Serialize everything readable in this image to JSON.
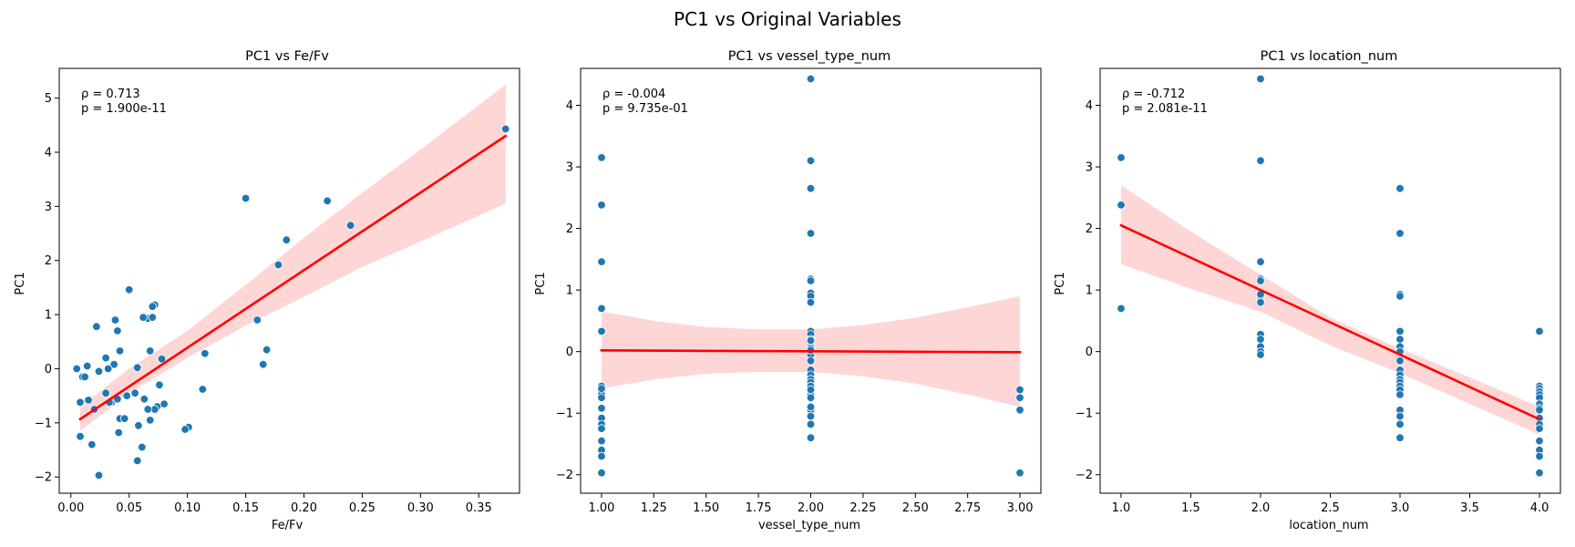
{
  "figure": {
    "suptitle": "PC1 vs Original Variables"
  },
  "style": {
    "point_color": "#1f77b4",
    "line_color": "#ff0000",
    "band_color": "#ffd6d6"
  },
  "chart_data": [
    {
      "type": "scatter",
      "title": "PC1 vs Fe/Fv",
      "xlabel": "Fe/Fv",
      "ylabel": "PC1",
      "xlim": [
        -0.01,
        0.385
      ],
      "ylim": [
        -2.3,
        5.55
      ],
      "xticks": [
        0.0,
        0.05,
        0.1,
        0.15,
        0.2,
        0.25,
        0.3,
        0.35
      ],
      "xtick_labels": [
        "0.00",
        "0.05",
        "0.10",
        "0.15",
        "0.20",
        "0.25",
        "0.30",
        "0.35"
      ],
      "yticks": [
        -2,
        -1,
        0,
        1,
        2,
        3,
        4,
        5
      ],
      "ytick_labels": [
        "−2",
        "−1",
        "0",
        "1",
        "2",
        "3",
        "4",
        "5"
      ],
      "annotation": [
        "ρ = 0.713",
        "p = 1.900e-11"
      ],
      "x": [
        0.373,
        0.15,
        0.22,
        0.24,
        0.185,
        0.178,
        0.16,
        0.165,
        0.168,
        0.115,
        0.113,
        0.101,
        0.098,
        0.078,
        0.08,
        0.076,
        0.072,
        0.074,
        0.07,
        0.072,
        0.066,
        0.07,
        0.062,
        0.068,
        0.066,
        0.05,
        0.038,
        0.04,
        0.022,
        0.03,
        0.042,
        0.057,
        0.037,
        0.032,
        0.024,
        0.014,
        0.01,
        0.005,
        0.012,
        0.008,
        0.035,
        0.03,
        0.048,
        0.055,
        0.04,
        0.063,
        0.058,
        0.042,
        0.046,
        0.015,
        0.008,
        0.018,
        0.033,
        0.068,
        0.061,
        0.041,
        0.057,
        0.02,
        0.024
      ],
      "y": [
        4.43,
        3.15,
        3.1,
        2.65,
        2.38,
        1.92,
        0.9,
        0.08,
        0.35,
        0.28,
        -0.38,
        -1.08,
        -1.12,
        0.18,
        -0.65,
        -0.3,
        1.18,
        -0.7,
        1.15,
        -0.75,
        0.93,
        0.95,
        0.95,
        0.33,
        -0.75,
        1.46,
        0.9,
        0.7,
        0.78,
        0.2,
        0.33,
        0.02,
        0.08,
        0.0,
        -0.05,
        0.05,
        -0.15,
        0.0,
        -0.15,
        -0.62,
        -0.62,
        -0.45,
        -0.5,
        -0.45,
        -0.56,
        -0.56,
        -1.05,
        -0.92,
        -0.92,
        -0.58,
        -1.25,
        -1.4,
        -0.62,
        -0.95,
        -1.45,
        -1.18,
        -1.7,
        -0.75,
        -1.97
      ],
      "fit": {
        "x": [
          0.008,
          0.373
        ],
        "y": [
          -0.93,
          4.3
        ]
      },
      "band": {
        "x": [
          0.008,
          0.05,
          0.1,
          0.15,
          0.2,
          0.25,
          0.3,
          0.373
        ],
        "upper": [
          -0.7,
          0.0,
          0.7,
          1.55,
          2.42,
          3.25,
          4.05,
          5.25
        ],
        "lower": [
          -1.15,
          -0.45,
          0.2,
          0.8,
          1.33,
          1.88,
          2.35,
          3.05
        ]
      }
    },
    {
      "type": "scatter",
      "title": "PC1 vs vessel_type_num",
      "xlabel": "vessel_type_num",
      "ylabel": "PC1",
      "xlim": [
        0.9,
        3.1
      ],
      "ylim": [
        -2.3,
        4.6
      ],
      "xticks": [
        1.0,
        1.25,
        1.5,
        1.75,
        2.0,
        2.25,
        2.5,
        2.75,
        3.0
      ],
      "xtick_labels": [
        "1.00",
        "1.25",
        "1.50",
        "1.75",
        "2.00",
        "2.25",
        "2.50",
        "2.75",
        "3.00"
      ],
      "yticks": [
        -2,
        -1,
        0,
        1,
        2,
        3,
        4
      ],
      "ytick_labels": [
        "−2",
        "−1",
        "0",
        "1",
        "2",
        "3",
        "4"
      ],
      "annotation": [
        "ρ = -0.004",
        "p = 9.735e-01"
      ],
      "x": [
        1,
        1,
        1,
        1,
        1,
        1,
        1,
        1,
        1,
        1,
        1,
        1,
        1,
        1,
        1,
        1,
        1,
        1,
        1,
        2,
        2,
        2,
        2,
        2,
        2,
        2,
        2,
        2,
        2,
        2,
        2,
        2,
        2,
        2,
        2,
        2,
        2,
        2,
        2,
        2,
        2,
        2,
        2,
        2,
        2,
        2,
        2,
        2,
        2,
        2,
        2,
        2,
        2,
        3,
        3,
        3,
        3
      ],
      "y": [
        3.15,
        2.38,
        1.46,
        0.7,
        0.33,
        -0.56,
        -0.62,
        -0.65,
        -0.7,
        -0.75,
        -0.92,
        -1.08,
        -1.18,
        -1.25,
        -1.45,
        -1.6,
        -1.7,
        -1.97,
        -0.6,
        4.43,
        3.1,
        2.65,
        1.92,
        1.18,
        1.15,
        0.95,
        0.9,
        0.8,
        0.33,
        0.28,
        0.2,
        0.08,
        0.05,
        0.0,
        -0.05,
        -0.15,
        -0.3,
        -0.38,
        -0.45,
        -0.5,
        -0.56,
        -0.62,
        -0.7,
        -0.75,
        -0.95,
        -1.05,
        -1.18,
        -1.4,
        0.18,
        0.02,
        -0.56,
        -0.9,
        -0.62,
        -0.62,
        -0.75,
        -0.95,
        -1.97
      ],
      "fit": {
        "x": [
          1.0,
          3.0
        ],
        "y": [
          0.02,
          -0.01
        ]
      },
      "band": {
        "x": [
          1.0,
          1.25,
          1.5,
          1.75,
          2.0,
          2.25,
          2.5,
          2.75,
          3.0
        ],
        "upper": [
          0.65,
          0.5,
          0.4,
          0.36,
          0.36,
          0.43,
          0.55,
          0.72,
          0.9
        ],
        "lower": [
          -0.6,
          -0.45,
          -0.36,
          -0.33,
          -0.33,
          -0.4,
          -0.52,
          -0.7,
          -0.9
        ]
      }
    },
    {
      "type": "scatter",
      "title": "PC1 vs location_num",
      "xlabel": "location_num",
      "ylabel": "PC1",
      "xlim": [
        0.85,
        4.15
      ],
      "ylim": [
        -2.3,
        4.6
      ],
      "xticks": [
        1.0,
        1.5,
        2.0,
        2.5,
        3.0,
        3.5,
        4.0
      ],
      "xtick_labels": [
        "1.0",
        "1.5",
        "2.0",
        "2.5",
        "3.0",
        "3.5",
        "4.0"
      ],
      "yticks": [
        -2,
        -1,
        0,
        1,
        2,
        3,
        4
      ],
      "ytick_labels": [
        "−2",
        "−1",
        "0",
        "1",
        "2",
        "3",
        "4"
      ],
      "annotation": [
        "ρ = -0.712",
        "p = 2.081e-11"
      ],
      "x": [
        1,
        1,
        1,
        2,
        2,
        2,
        2,
        2,
        2,
        2,
        2,
        2,
        2,
        2,
        2,
        2,
        2,
        3,
        3,
        3,
        3,
        3,
        3,
        3,
        3,
        3,
        3,
        3,
        3,
        3,
        3,
        3,
        3,
        3,
        3,
        3,
        3,
        4,
        4,
        4,
        4,
        4,
        4,
        4,
        4,
        4,
        4,
        4,
        4,
        4,
        4,
        4,
        4
      ],
      "y": [
        3.15,
        2.38,
        0.7,
        4.43,
        3.1,
        1.46,
        1.18,
        1.15,
        0.95,
        0.9,
        0.8,
        0.28,
        0.2,
        0.08,
        0.0,
        -0.05,
        0.93,
        2.65,
        1.92,
        0.93,
        0.9,
        0.33,
        0.2,
        0.08,
        0.0,
        -0.15,
        -0.3,
        -0.38,
        -0.45,
        -0.5,
        -0.56,
        -0.62,
        -0.7,
        -0.95,
        -1.05,
        -1.18,
        -1.4,
        0.33,
        -0.56,
        -0.6,
        -0.65,
        -0.7,
        -0.75,
        -0.85,
        -0.92,
        -0.95,
        -1.08,
        -1.18,
        -1.25,
        -1.45,
        -1.6,
        -1.7,
        -1.97
      ],
      "fit": {
        "x": [
          1.0,
          4.0
        ],
        "y": [
          2.05,
          -1.1
        ]
      },
      "band": {
        "x": [
          1.0,
          1.5,
          2.0,
          2.5,
          3.0,
          3.5,
          4.0
        ],
        "upper": [
          2.7,
          1.95,
          1.25,
          0.55,
          0.05,
          -0.42,
          -0.9
        ],
        "lower": [
          1.42,
          1.02,
          0.65,
          0.1,
          -0.35,
          -0.85,
          -1.35
        ]
      }
    }
  ]
}
